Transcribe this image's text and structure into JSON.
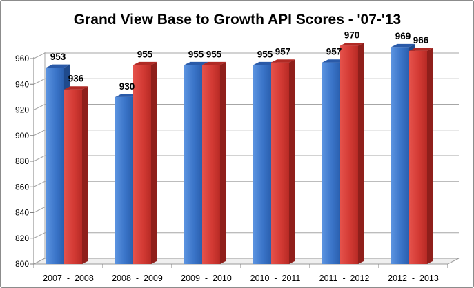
{
  "chart_data": {
    "type": "bar",
    "title": "Grand View Base to Growth API Scores - '07-'13",
    "xlabel": "",
    "ylabel": "",
    "categories": [
      "2007  -  2008",
      "2008  -  2009",
      "2009  -  2010",
      "2010  -  2011",
      "2011  -  2012",
      "2012  -  2013"
    ],
    "series": [
      {
        "values": [
          953,
          930,
          955,
          955,
          957,
          969
        ],
        "labels": [
          "953",
          "930",
          "955",
          "955",
          "957",
          "969"
        ],
        "color": "#3a74c8"
      },
      {
        "values": [
          936,
          955,
          955,
          957,
          970,
          966
        ],
        "labels": [
          "936",
          "955",
          "955",
          "957",
          "970",
          "966"
        ],
        "color": "#d33a34"
      }
    ],
    "ylim": [
      800,
      960
    ],
    "yticks": [
      "800",
      "820",
      "840",
      "860",
      "880",
      "900",
      "920",
      "940",
      "960"
    ],
    "grid": true,
    "legend": "none"
  }
}
